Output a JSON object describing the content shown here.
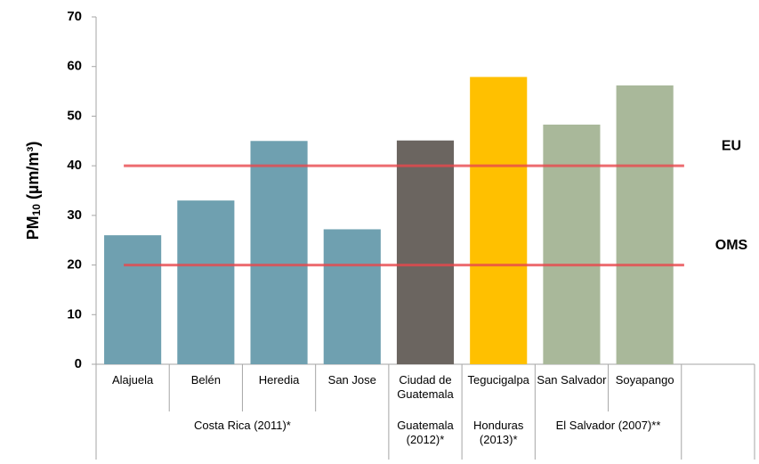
{
  "chart_data": {
    "type": "bar",
    "ylabel": [
      "PM",
      "10",
      " (µm/m³)"
    ],
    "categories": [
      "Alajuela",
      "Belén",
      "Heredia",
      "San Jose",
      "Ciudad de Guatemala",
      "Tegucigalpa",
      "San Salvador",
      "Soyapango",
      null
    ],
    "values": [
      26,
      33,
      45,
      27.2,
      45.1,
      57.9,
      48.3,
      56.2,
      null
    ],
    "colors": [
      "#6fa0b0",
      "#6fa0b0",
      "#6fa0b0",
      "#6fa0b0",
      "#6b6560",
      "#ffc000",
      "#a9b89a",
      "#a9b89a",
      null
    ],
    "groups": [
      {
        "label": "Costa Rica (2011)*",
        "size": 4
      },
      {
        "label": "Guatemala (2012)*",
        "size": 1
      },
      {
        "label": "Honduras (2013)*",
        "size": 1
      },
      {
        "label": "El Salvador (2007)**",
        "size": 2
      }
    ],
    "reference_lines": [
      {
        "label": "EU",
        "value": 40,
        "color": "#e8474c"
      },
      {
        "label": "OMS",
        "value": 20,
        "color": "#e8474c"
      }
    ],
    "ylim": [
      0,
      70
    ],
    "yticks": [
      0,
      10,
      20,
      30,
      40,
      50,
      60,
      70
    ],
    "grid": false
  }
}
